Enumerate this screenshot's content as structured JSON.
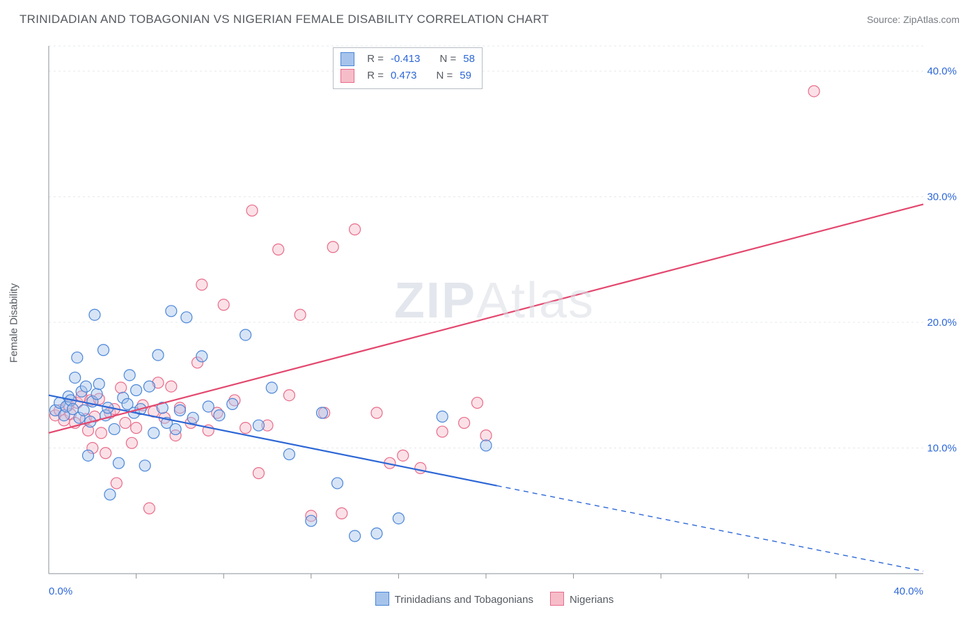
{
  "header": {
    "title": "TRINIDADIAN AND TOBAGONIAN VS NIGERIAN FEMALE DISABILITY CORRELATION CHART",
    "source_label": "Source: ZipAtlas.com"
  },
  "watermark": {
    "part1": "ZIP",
    "part2": "Atlas"
  },
  "ylabel": "Female Disability",
  "chart": {
    "type": "scatter-with-regression",
    "background_color": "#ffffff",
    "grid_color": "#e6e8eb",
    "axis_line_color": "#8b9097",
    "tick_color": "#8b9097",
    "xlim": [
      0,
      40
    ],
    "ylim": [
      0,
      42
    ],
    "x_ticks_major": [
      0,
      40
    ],
    "x_ticks_minor": [
      4,
      8,
      12,
      16,
      20,
      24,
      28,
      32,
      36
    ],
    "y_ticks_major": [
      10,
      20,
      30,
      40
    ],
    "x_tick_labels": {
      "0": "0.0%",
      "40": "40.0%"
    },
    "y_tick_labels": {
      "10": "10.0%",
      "20": "20.0%",
      "30": "30.0%",
      "40": "40.0%"
    },
    "marker_radius": 8,
    "marker_stroke_width": 1.2,
    "marker_fill_opacity": 0.45,
    "line_width": 2.2,
    "series": [
      {
        "name": "Trinidadians and Tobagonians",
        "color_stroke": "#4a86d8",
        "color_fill": "#a6c4eb",
        "reg_line_color": "#2d67d6",
        "reg_start": [
          0,
          14.2
        ],
        "reg_solid_end": [
          20.5,
          7.0
        ],
        "reg_dash_end": [
          40,
          0.2
        ],
        "points": [
          [
            0.3,
            13.0
          ],
          [
            0.5,
            13.6
          ],
          [
            0.7,
            12.6
          ],
          [
            0.8,
            13.3
          ],
          [
            0.9,
            14.1
          ],
          [
            1.0,
            13.8
          ],
          [
            1.1,
            13.1
          ],
          [
            1.2,
            15.6
          ],
          [
            1.3,
            17.2
          ],
          [
            1.4,
            12.4
          ],
          [
            1.5,
            14.5
          ],
          [
            1.6,
            13.0
          ],
          [
            1.7,
            14.9
          ],
          [
            1.8,
            9.4
          ],
          [
            1.9,
            12.1
          ],
          [
            2.0,
            13.7
          ],
          [
            2.1,
            20.6
          ],
          [
            2.2,
            14.3
          ],
          [
            2.3,
            15.1
          ],
          [
            2.5,
            17.8
          ],
          [
            2.6,
            12.6
          ],
          [
            2.7,
            13.2
          ],
          [
            2.8,
            6.3
          ],
          [
            3.0,
            11.5
          ],
          [
            3.2,
            8.8
          ],
          [
            3.4,
            14.0
          ],
          [
            3.6,
            13.5
          ],
          [
            3.7,
            15.8
          ],
          [
            3.9,
            12.8
          ],
          [
            4.0,
            14.6
          ],
          [
            4.2,
            13.1
          ],
          [
            4.4,
            8.6
          ],
          [
            4.6,
            14.9
          ],
          [
            4.8,
            11.2
          ],
          [
            5.0,
            17.4
          ],
          [
            5.2,
            13.2
          ],
          [
            5.4,
            12.0
          ],
          [
            5.6,
            20.9
          ],
          [
            5.8,
            11.5
          ],
          [
            6.0,
            13.0
          ],
          [
            6.3,
            20.4
          ],
          [
            6.6,
            12.4
          ],
          [
            7.0,
            17.3
          ],
          [
            7.3,
            13.3
          ],
          [
            7.8,
            12.6
          ],
          [
            8.4,
            13.5
          ],
          [
            9.0,
            19.0
          ],
          [
            9.6,
            11.8
          ],
          [
            10.2,
            14.8
          ],
          [
            11.0,
            9.5
          ],
          [
            12.0,
            4.2
          ],
          [
            12.5,
            12.8
          ],
          [
            13.2,
            7.2
          ],
          [
            14.0,
            3.0
          ],
          [
            15.0,
            3.2
          ],
          [
            16.0,
            4.4
          ],
          [
            18.0,
            12.5
          ],
          [
            20.0,
            10.2
          ]
        ]
      },
      {
        "name": "Nigerians",
        "color_stroke": "#e86b8a",
        "color_fill": "#f6bdc9",
        "reg_line_color": "#e3476e",
        "reg_start": [
          0,
          11.2
        ],
        "reg_solid_end": [
          40,
          29.4
        ],
        "points": [
          [
            0.3,
            12.6
          ],
          [
            0.5,
            13.0
          ],
          [
            0.7,
            12.2
          ],
          [
            0.9,
            13.4
          ],
          [
            1.0,
            12.7
          ],
          [
            1.2,
            12.0
          ],
          [
            1.3,
            13.6
          ],
          [
            1.5,
            14.1
          ],
          [
            1.7,
            12.3
          ],
          [
            1.8,
            11.4
          ],
          [
            1.9,
            13.8
          ],
          [
            2.0,
            10.0
          ],
          [
            2.1,
            12.5
          ],
          [
            2.3,
            13.9
          ],
          [
            2.4,
            11.2
          ],
          [
            2.6,
            9.6
          ],
          [
            2.8,
            12.8
          ],
          [
            3.0,
            13.1
          ],
          [
            3.1,
            7.2
          ],
          [
            3.3,
            14.8
          ],
          [
            3.5,
            12.0
          ],
          [
            3.8,
            10.4
          ],
          [
            4.0,
            11.6
          ],
          [
            4.3,
            13.4
          ],
          [
            4.6,
            5.2
          ],
          [
            4.8,
            12.9
          ],
          [
            5.0,
            15.2
          ],
          [
            5.3,
            12.4
          ],
          [
            5.6,
            14.9
          ],
          [
            5.8,
            11.0
          ],
          [
            6.0,
            13.2
          ],
          [
            6.5,
            12.0
          ],
          [
            6.8,
            16.8
          ],
          [
            7.0,
            23.0
          ],
          [
            7.3,
            11.4
          ],
          [
            7.7,
            12.8
          ],
          [
            8.0,
            21.4
          ],
          [
            8.5,
            13.8
          ],
          [
            9.0,
            11.6
          ],
          [
            9.3,
            28.9
          ],
          [
            9.6,
            8.0
          ],
          [
            10.0,
            11.8
          ],
          [
            10.5,
            25.8
          ],
          [
            11.0,
            14.2
          ],
          [
            11.5,
            20.6
          ],
          [
            12.0,
            4.6
          ],
          [
            12.6,
            12.8
          ],
          [
            13.0,
            26.0
          ],
          [
            13.4,
            4.8
          ],
          [
            14.0,
            27.4
          ],
          [
            15.0,
            12.8
          ],
          [
            15.6,
            8.8
          ],
          [
            16.2,
            9.4
          ],
          [
            17.0,
            8.4
          ],
          [
            18.0,
            11.3
          ],
          [
            19.0,
            12.0
          ],
          [
            19.6,
            13.6
          ],
          [
            20.0,
            11.0
          ],
          [
            35.0,
            38.4
          ]
        ]
      }
    ]
  },
  "stats_box": {
    "rows": [
      {
        "swatch_stroke": "#4a86d8",
        "swatch_fill": "#a6c4eb",
        "r_label": "R =",
        "r_value": "-0.413",
        "n_label": "N =",
        "n_value": "58"
      },
      {
        "swatch_stroke": "#e86b8a",
        "swatch_fill": "#f6bdc9",
        "r_label": "R =",
        "r_value": " 0.473",
        "n_label": "N =",
        "n_value": "59"
      }
    ]
  },
  "bottom_legend": {
    "items": [
      {
        "swatch_stroke": "#4a86d8",
        "swatch_fill": "#a6c4eb",
        "label": "Trinidadians and Tobagonians"
      },
      {
        "swatch_stroke": "#e86b8a",
        "swatch_fill": "#f6bdc9",
        "label": "Nigerians"
      }
    ]
  }
}
